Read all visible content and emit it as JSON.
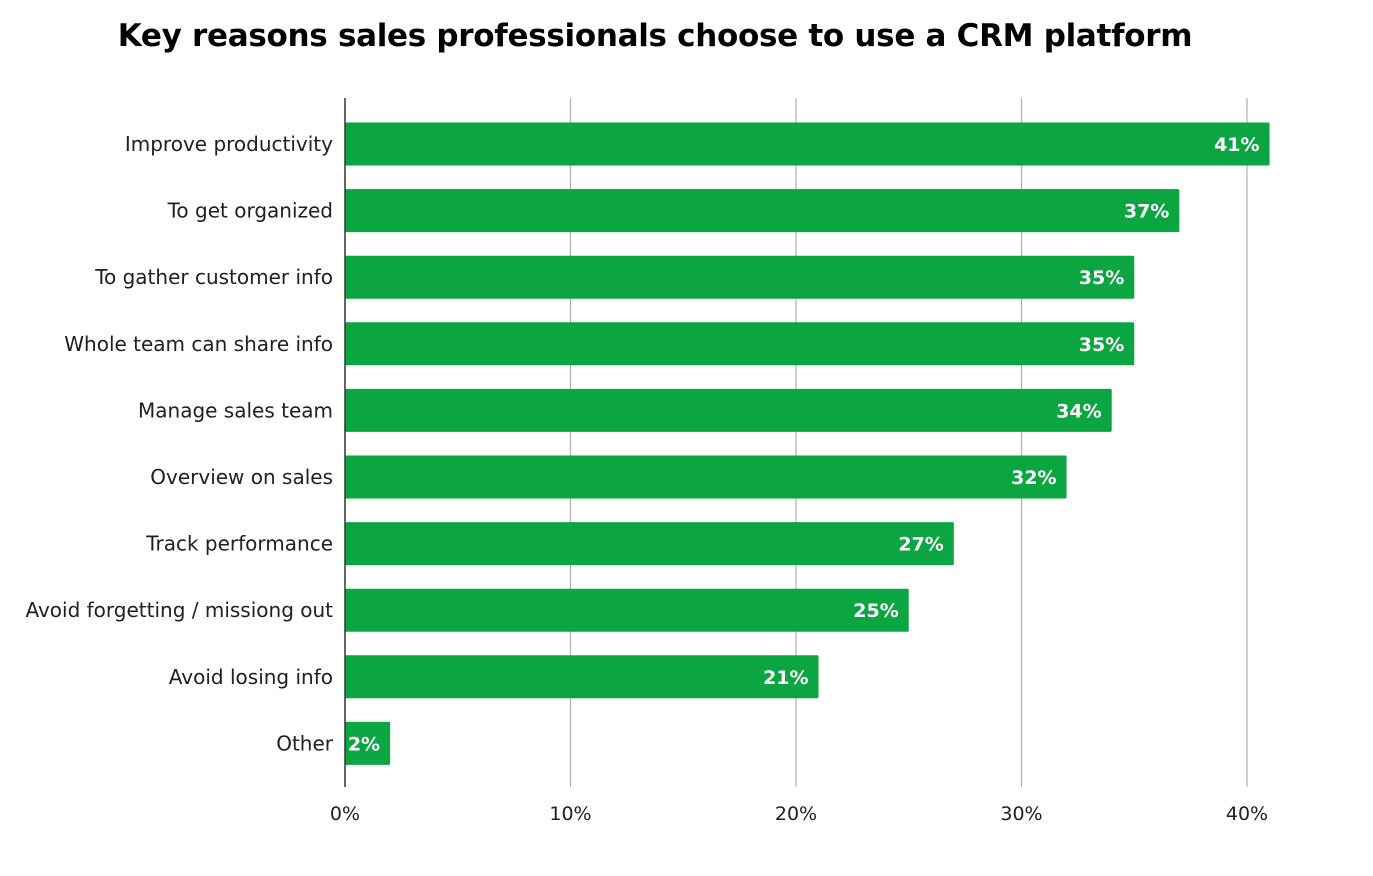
{
  "chart_data": {
    "type": "bar",
    "orientation": "horizontal",
    "title": "Key reasons sales professionals choose to use a CRM platform",
    "xlabel": "",
    "ylabel": "",
    "categories": [
      "Improve productivity",
      "To get organized",
      "To gather customer info",
      "Whole team can share info",
      "Manage sales team",
      "Overview on sales",
      "Track performance",
      "Avoid forgetting / missiong out",
      "Avoid losing info",
      "Other"
    ],
    "values": [
      41,
      37,
      35,
      35,
      34,
      32,
      27,
      25,
      21,
      2
    ],
    "data_labels": [
      "41%",
      "37%",
      "35%",
      "35%",
      "34%",
      "32%",
      "27%",
      "25%",
      "21%",
      "2%"
    ],
    "xlim": [
      0,
      40
    ],
    "x_ticks": [
      0,
      10,
      20,
      30,
      40
    ],
    "x_tick_labels": [
      "0%",
      "10%",
      "20%",
      "30%",
      "40%"
    ],
    "grid": true,
    "legend": "none",
    "bar_color": "#0ba641",
    "grid_color": "#b0b0b0",
    "axis_color": "#333333"
  }
}
